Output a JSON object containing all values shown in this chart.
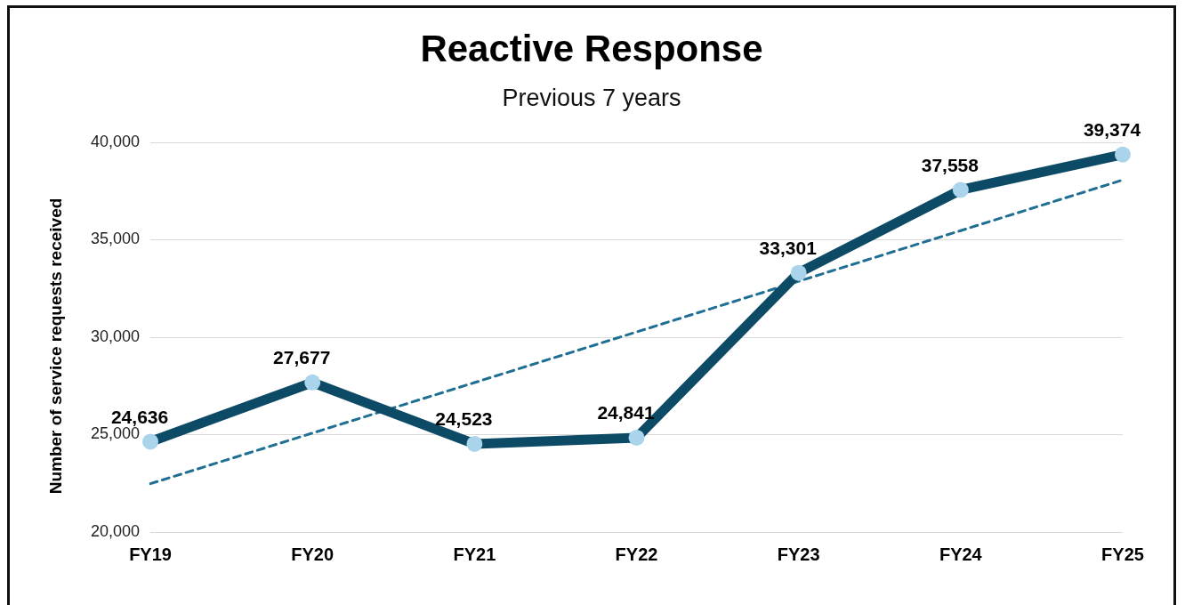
{
  "chart_data": {
    "type": "line",
    "title": "Reactive Response",
    "subtitle": "Previous 7 years",
    "ylabel": "Number of service requests received",
    "categories": [
      "FY19",
      "FY20",
      "FY21",
      "FY22",
      "FY23",
      "FY24",
      "FY25"
    ],
    "series": [
      {
        "color": "#0d4a66",
        "values": [
          24636,
          27677,
          24523,
          24841,
          33301,
          37558,
          39374
        ],
        "marker": "circle",
        "value_labels": [
          "24,636",
          "27,677",
          "24,523",
          "24,841",
          "33,301",
          "37,558",
          "39,374"
        ]
      },
      {
        "type": "line",
        "color": "#1f6e93",
        "line_style": "dashed",
        "marker": "none",
        "values": [
          22480,
          25080,
          27670,
          30270,
          32870,
          35470,
          38070
        ]
      }
    ],
    "ylim": [
      20000,
      40000
    ],
    "yticks": [
      {
        "value": 20000,
        "label": "20,000"
      },
      {
        "value": 25000,
        "label": "25,000"
      },
      {
        "value": 30000,
        "label": "30,000"
      },
      {
        "value": 35000,
        "label": "35,000"
      },
      {
        "value": 40000,
        "label": "40,000"
      }
    ],
    "grid": "y",
    "legend": false
  }
}
